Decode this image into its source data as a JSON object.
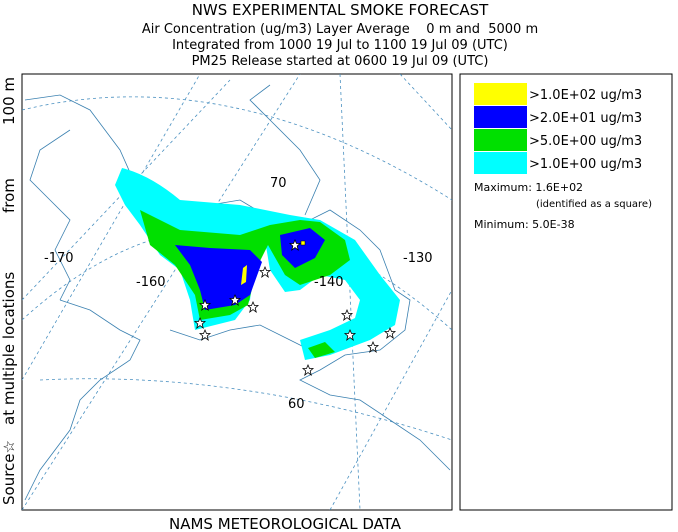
{
  "header": {
    "title": "NWS EXPERIMENTAL SMOKE FORECAST",
    "lines": [
      "Air Concentration (ug/m3) Layer Average    0 m and  5000 m",
      "Integrated from 1000 19 Jul to 1100 19 Jul 09 (UTC)",
      "PM25 Release started at 0600 19 Jul 09 (UTC)"
    ]
  },
  "side_label": [
    "Source☆",
    "at multiple locations",
    "from",
    "100 m"
  ],
  "map": {
    "labels": [
      "-170",
      "-160",
      "-140",
      "-130",
      "70",
      "60"
    ]
  },
  "legend": {
    "items": [
      {
        "label": ">1.0E+02 ug/m3",
        "color": "#ffff00"
      },
      {
        "label": ">2.0E+01 ug/m3",
        "color": "#0000ff"
      },
      {
        "label": ">5.0E+00 ug/m3",
        "color": "#00e000"
      },
      {
        "label": ">1.0E+00 ug/m3",
        "color": "#00ffff"
      }
    ],
    "maximum": "Maximum: 1.6E+02",
    "maximum_note": "(identified as a square)",
    "minimum": "Minimum: 5.0E-38"
  },
  "footer": "NAMS METEOROLOGICAL DATA"
}
